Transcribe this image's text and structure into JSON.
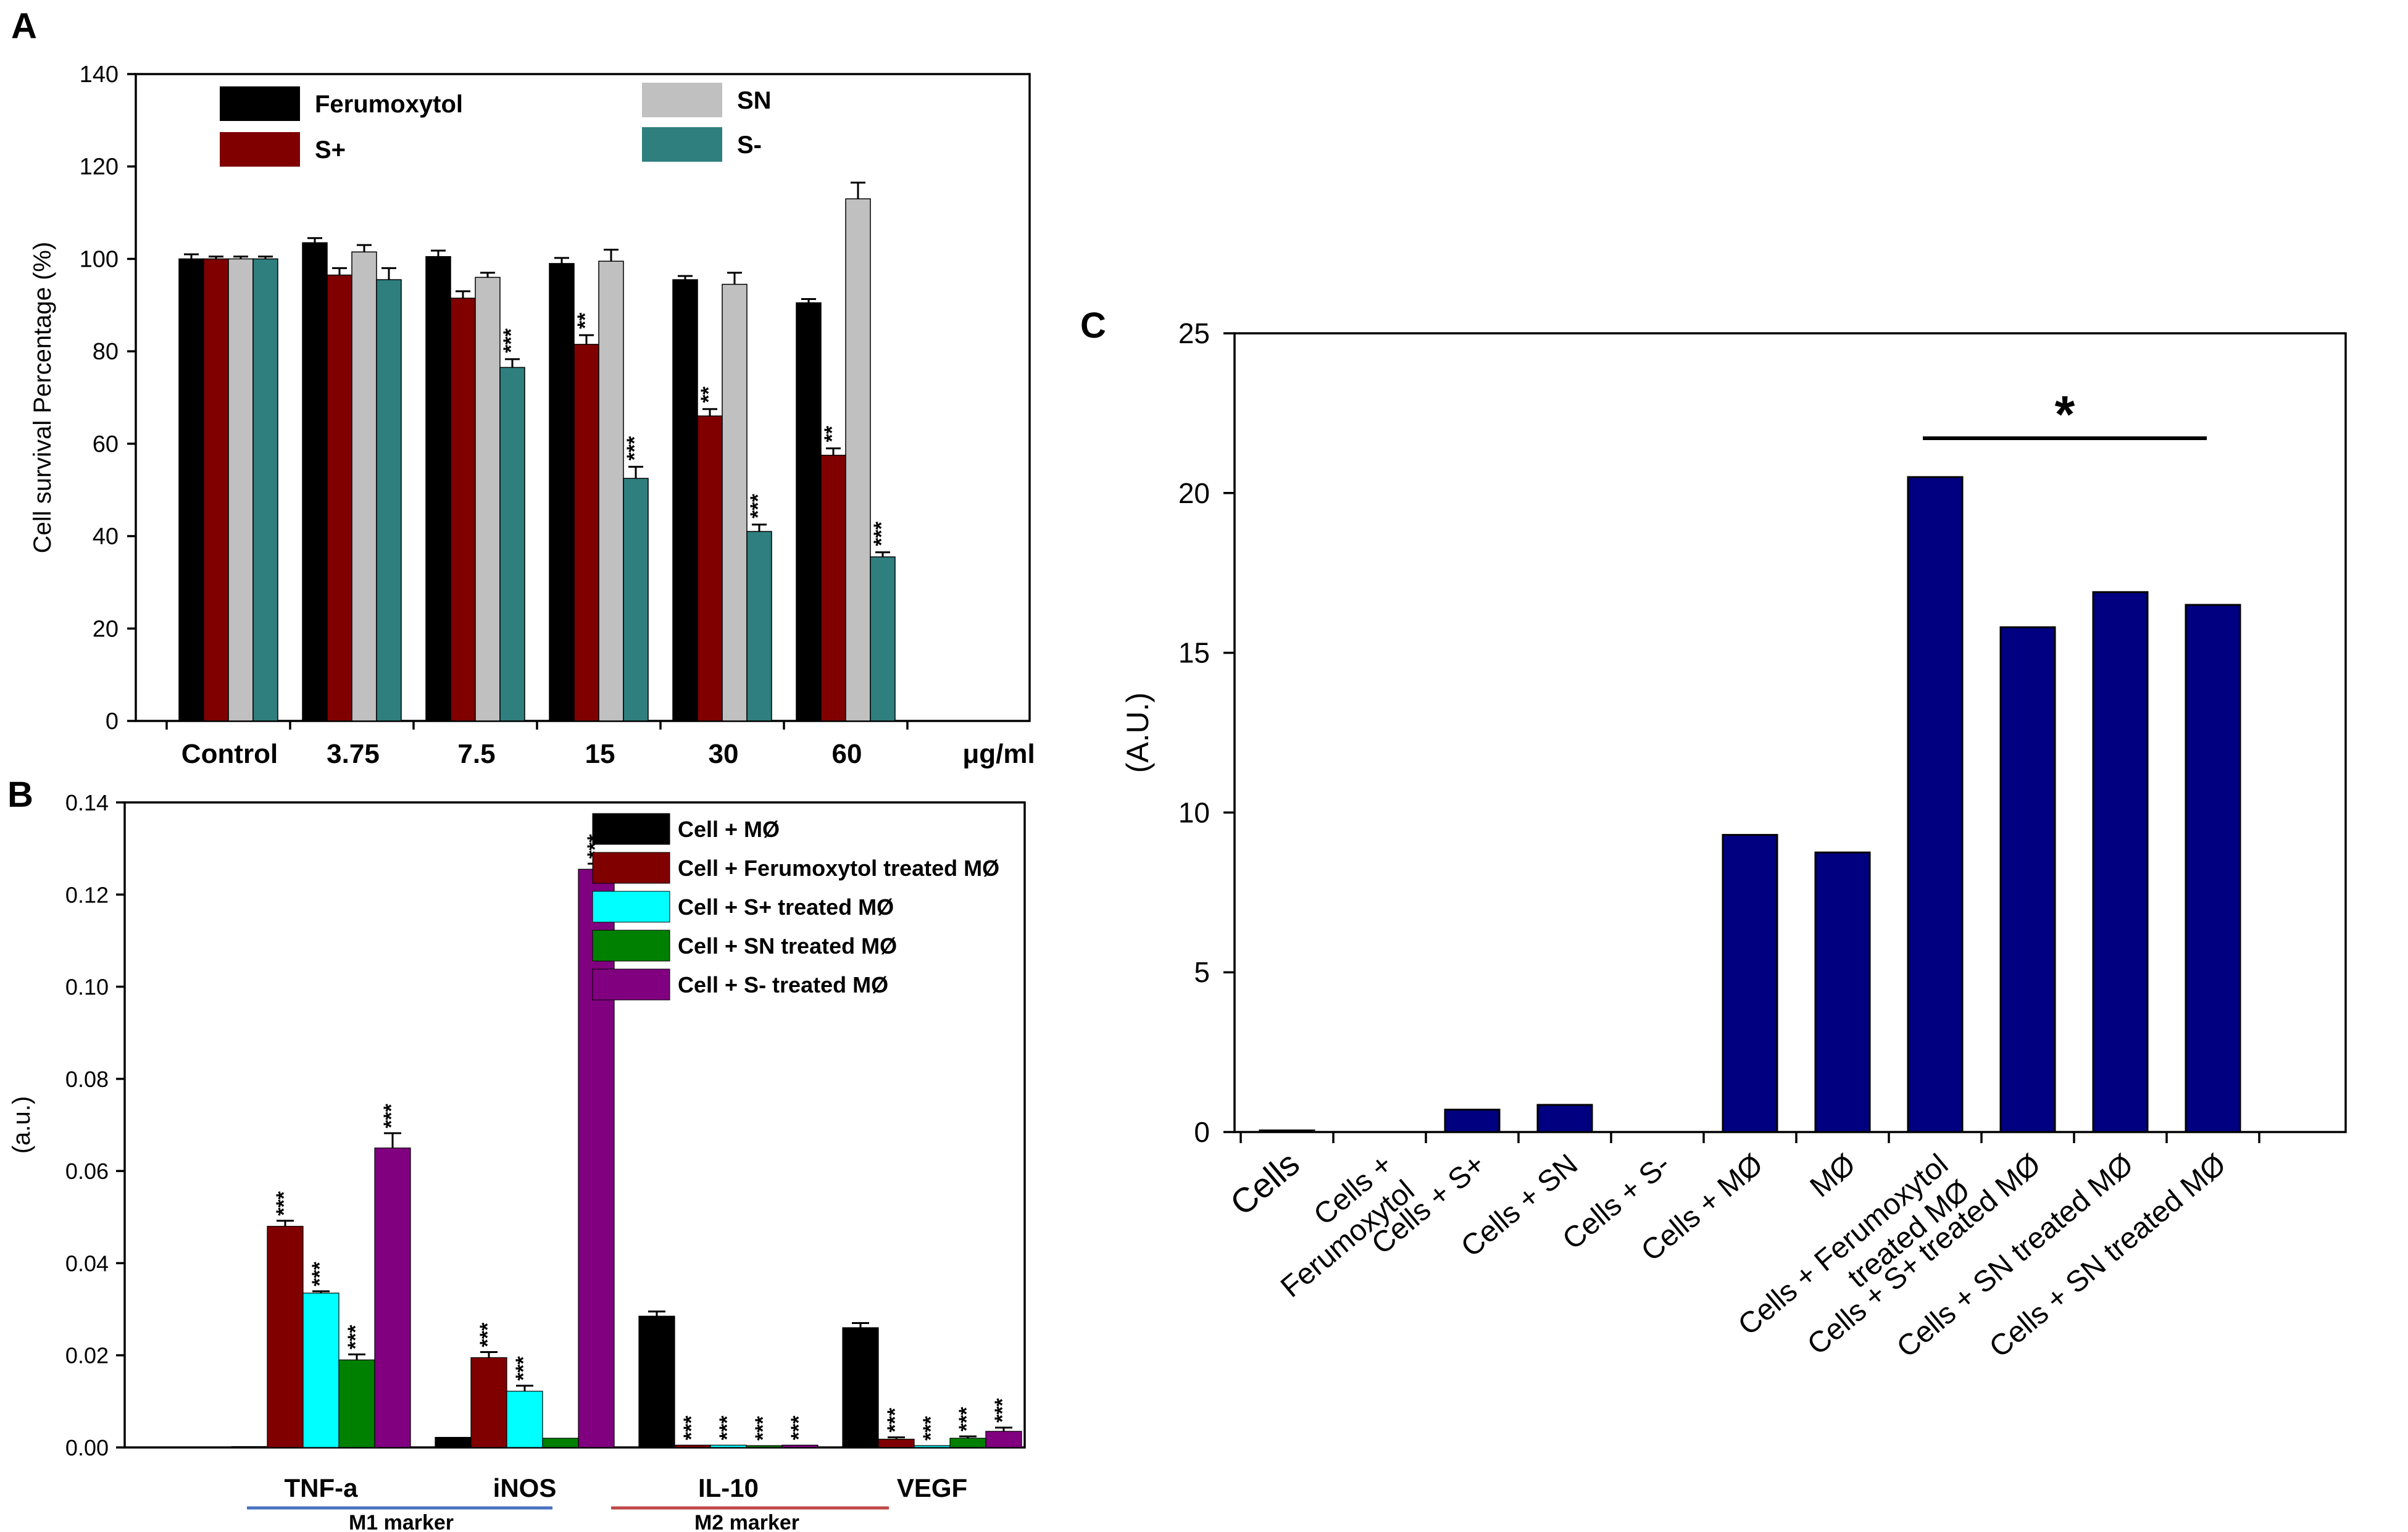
{
  "chart_data": [
    {
      "panel": "A",
      "type": "bar",
      "title": "",
      "xlabel": "",
      "ylabel": "Cell survival Percentage (%)",
      "unit_label": "μg/ml",
      "ylim": [
        0,
        140
      ],
      "yticks": [
        0,
        20,
        40,
        60,
        80,
        100,
        120,
        140
      ],
      "categories": [
        "Control",
        "3.75",
        "7.5",
        "15",
        "30",
        "60"
      ],
      "series": [
        {
          "name": "Ferumoxytol",
          "color": "#000000",
          "values": [
            100,
            103.5,
            100.5,
            99,
            95.5,
            90.5
          ],
          "errors": [
            1,
            1,
            1.3,
            1.2,
            0.8,
            0.8
          ],
          "sig": [
            "",
            "",
            "",
            "",
            "",
            ""
          ]
        },
        {
          "name": "S+",
          "color": "#800000",
          "values": [
            100,
            96.5,
            91.5,
            81.5,
            66,
            57.5
          ],
          "errors": [
            0.5,
            1.5,
            1.5,
            2,
            1.5,
            1.5
          ],
          "sig": [
            "",
            "",
            "",
            "**",
            "**",
            "**"
          ]
        },
        {
          "name": "SN",
          "color": "#c0c0c0",
          "values": [
            100,
            101.5,
            96,
            99.5,
            94.5,
            113
          ],
          "errors": [
            0.5,
            1.5,
            1,
            2.5,
            2.5,
            3.5
          ],
          "sig": [
            "",
            "",
            "",
            "",
            "",
            ""
          ]
        },
        {
          "name": "S-",
          "color": "#2f7f7f",
          "values": [
            100,
            95.5,
            76.5,
            52.5,
            41,
            35.5
          ],
          "errors": [
            0.5,
            2.5,
            1.8,
            2.5,
            1.5,
            1
          ],
          "sig": [
            "",
            "",
            "***",
            "***",
            "***",
            "***"
          ]
        }
      ]
    },
    {
      "panel": "B",
      "type": "bar",
      "title": "",
      "xlabel": "",
      "ylabel": "(a.u.)",
      "ylim": [
        0,
        0.14
      ],
      "yticks": [
        "0.00",
        "0.02",
        "0.04",
        "0.06",
        "0.08",
        "0.10",
        "0.12",
        "0.14"
      ],
      "categories": [
        "TNF-a",
        "iNOS",
        "IL-10",
        "VEGF"
      ],
      "groups": [
        {
          "label": "M1 marker",
          "color": "#4a72c0"
        },
        {
          "label": "M2 marker",
          "color": "#c04848"
        }
      ],
      "series": [
        {
          "name": "Cell + MØ",
          "color": "#000000",
          "values": [
            0.0002,
            0.0022,
            0.0285,
            0.026
          ],
          "errors": [
            0,
            0,
            0.001,
            0.001
          ],
          "sig": [
            "",
            "",
            "",
            ""
          ]
        },
        {
          "name": "Cell + Ferumoxytol treated MØ",
          "color": "#800000",
          "values": [
            0.048,
            0.0195,
            0.0005,
            0.0018
          ],
          "errors": [
            0.0012,
            0.0012,
            0,
            0.0004
          ],
          "sig": [
            "***",
            "***",
            "***",
            "***"
          ]
        },
        {
          "name": "Cell + S+ treated MØ",
          "color": "#00ffff",
          "values": [
            0.0335,
            0.0122,
            0.0005,
            0.0004
          ],
          "errors": [
            0.0004,
            0.0012,
            0,
            0
          ],
          "sig": [
            "***",
            "***",
            "***",
            "***"
          ]
        },
        {
          "name": "Cell + SN treated MØ",
          "color": "#008000",
          "values": [
            0.019,
            0.002,
            0.0004,
            0.002
          ],
          "errors": [
            0.0012,
            0,
            0,
            0.0004
          ],
          "sig": [
            "***",
            "",
            "***",
            "***"
          ]
        },
        {
          "name": "Cell + S- treated MØ",
          "color": "#800080",
          "values": [
            0.065,
            0.1255,
            0.0005,
            0.0035
          ],
          "errors": [
            0.0032,
            0.0012,
            0,
            0.0008
          ],
          "sig": [
            "***",
            "***",
            "***",
            "***"
          ]
        }
      ]
    },
    {
      "panel": "C",
      "type": "bar",
      "title": "",
      "xlabel": "",
      "ylabel": "(A.U.)",
      "ylim": [
        0,
        25
      ],
      "yticks": [
        0,
        5,
        10,
        15,
        20,
        25
      ],
      "color": "#000080",
      "categories": [
        {
          "lines": [
            "Cells"
          ],
          "big": true
        },
        {
          "lines": [
            "Cells +",
            "Ferumoxytol"
          ]
        },
        {
          "lines": [
            "Cells + S+"
          ]
        },
        {
          "lines": [
            "Cells + SN"
          ]
        },
        {
          "lines": [
            "Cells + S-"
          ]
        },
        {
          "lines": [
            "Cells + MØ"
          ]
        },
        {
          "lines": [
            "MØ"
          ]
        },
        {
          "lines": [
            "Cells + Ferumoxytol",
            "treated MØ"
          ]
        },
        {
          "lines": [
            "Cells + S+ treated MØ"
          ]
        },
        {
          "lines": [
            "Cells + SN treated MØ"
          ]
        },
        {
          "lines": [
            "Cells + SN treated MØ"
          ]
        }
      ],
      "values": [
        0.05,
        0,
        0.7,
        0.85,
        0,
        9.3,
        8.75,
        20.5,
        15.8,
        16.9,
        16.5
      ],
      "significance": {
        "label": "*",
        "from_index": 7,
        "to_index": 10
      }
    }
  ]
}
